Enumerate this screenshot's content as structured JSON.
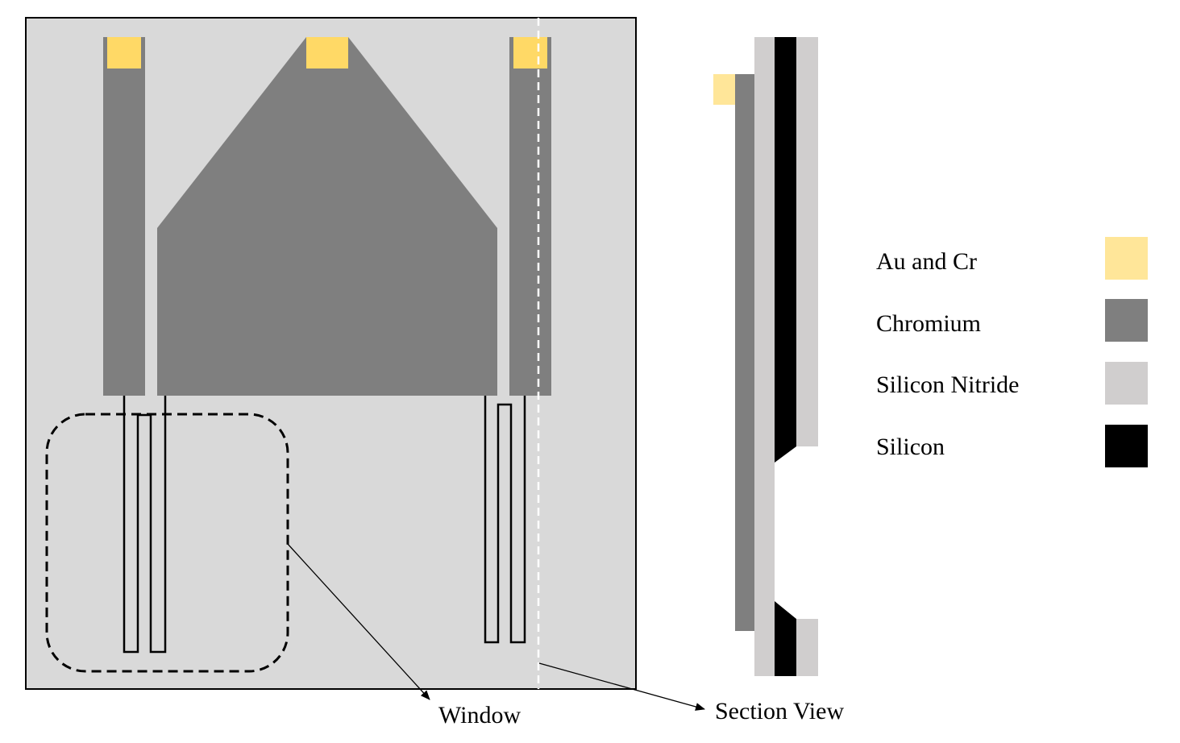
{
  "colors": {
    "au_cr": "#FFD966",
    "au_cr_legend": "#FFE699",
    "chromium": "#7F7F7F",
    "silicon_nitride": "#D0CECE",
    "silicon": "#000000",
    "substrate": "#D9D9D9"
  },
  "callouts": {
    "window": "Window",
    "section_view": "Section View"
  },
  "legend": [
    {
      "label": "Au and Cr",
      "color": "#FFE699"
    },
    {
      "label": "Chromium",
      "color": "#7F7F7F"
    },
    {
      "label": "Silicon Nitride",
      "color": "#D0CECE"
    },
    {
      "label": "Silicon",
      "color": "#000000"
    }
  ]
}
